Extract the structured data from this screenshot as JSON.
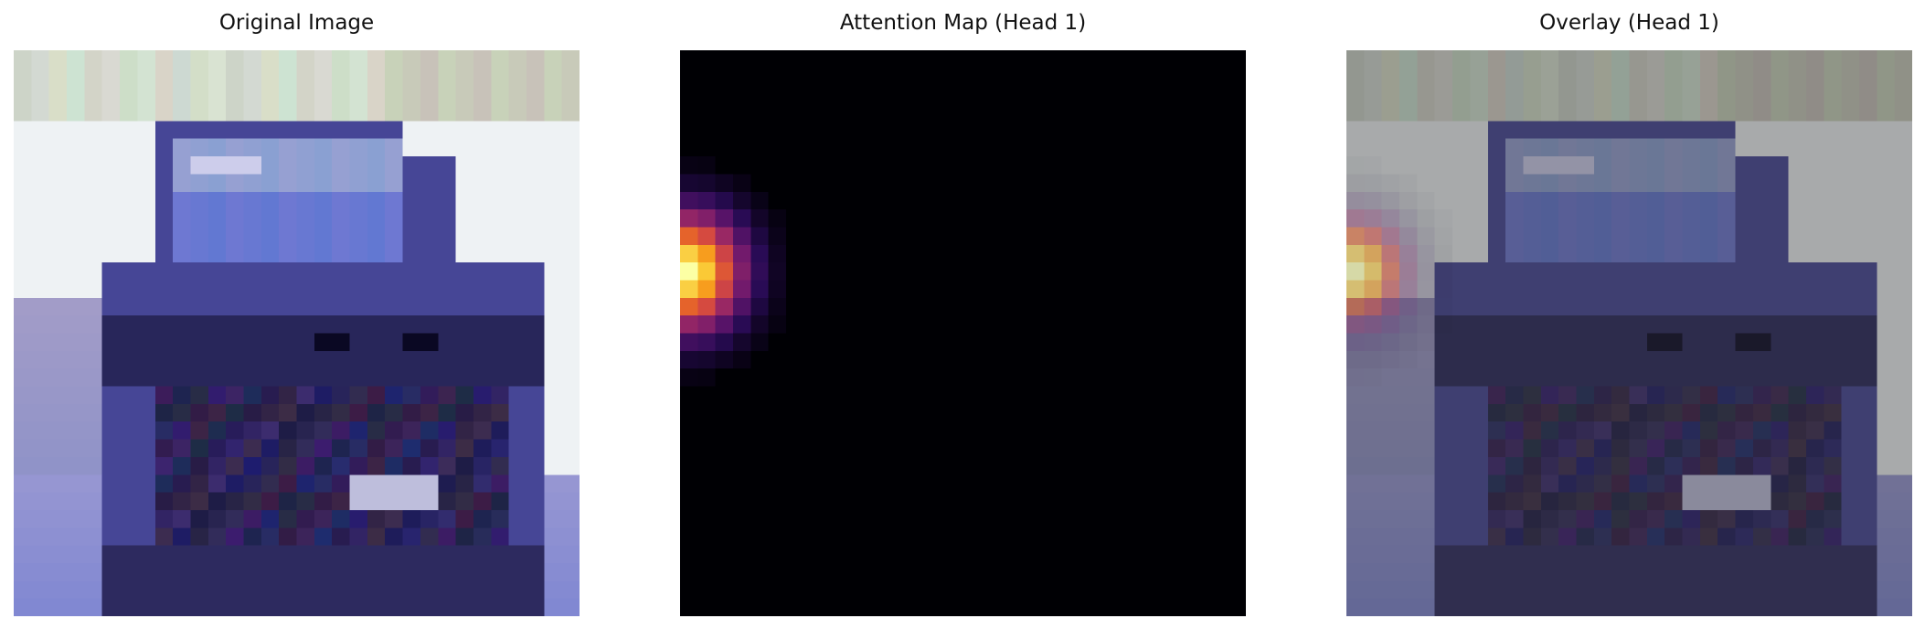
{
  "panels": [
    {
      "id": "original",
      "title": "Original Image",
      "kind": "photo"
    },
    {
      "id": "attention",
      "title": "Attention Map (Head 1)",
      "kind": "heatmap",
      "colormap": "inferno"
    },
    {
      "id": "overlay",
      "title": "Overlay (Head 1)",
      "kind": "overlay"
    }
  ],
  "attention": {
    "grid_size": 32,
    "peak_row": 12,
    "peak_col": 0,
    "sigma_row": 3.2,
    "sigma_col": 3.0
  },
  "overlay": {
    "base_dim": 0.62,
    "heat_alpha": 0.55
  }
}
